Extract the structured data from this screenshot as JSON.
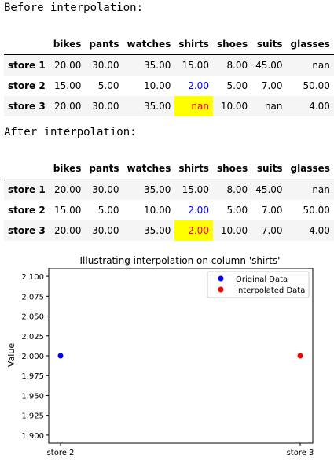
{
  "before": {
    "heading": "Before interpolation:",
    "columns": [
      "",
      "bikes",
      "pants",
      "watches",
      "shirts",
      "shoes",
      "suits",
      "glasses"
    ],
    "rows": [
      {
        "index": "store 1",
        "cells": [
          "20.00",
          "30.00",
          "35.00",
          "15.00",
          "8.00",
          "45.00",
          "nan"
        ]
      },
      {
        "index": "store 2",
        "cells": [
          "15.00",
          "5.00",
          "10.00",
          "2.00",
          "5.00",
          "7.00",
          "50.00"
        ]
      },
      {
        "index": "store 3",
        "cells": [
          "20.00",
          "30.00",
          "35.00",
          "nan",
          "10.00",
          "nan",
          "4.00"
        ]
      }
    ]
  },
  "after": {
    "heading": "After interpolation:",
    "columns": [
      "",
      "bikes",
      "pants",
      "watches",
      "shirts",
      "shoes",
      "suits",
      "glasses"
    ],
    "rows": [
      {
        "index": "store 1",
        "cells": [
          "20.00",
          "30.00",
          "35.00",
          "15.00",
          "8.00",
          "45.00",
          "nan"
        ]
      },
      {
        "index": "store 2",
        "cells": [
          "15.00",
          "5.00",
          "10.00",
          "2.00",
          "5.00",
          "7.00",
          "50.00"
        ]
      },
      {
        "index": "store 3",
        "cells": [
          "20.00",
          "30.00",
          "35.00",
          "2.00",
          "10.00",
          "7.00",
          "4.00"
        ]
      }
    ]
  },
  "highlight": {
    "blue_text": "#0000ff",
    "red_text": "#ff0000",
    "yellow_bg": "#ffff00"
  },
  "chart_data": {
    "type": "scatter",
    "title": "Illustrating interpolation on column 'shirts'",
    "xlabel": "",
    "ylabel": "Value",
    "categories": [
      "store 2",
      "store 3"
    ],
    "ylim": [
      1.89,
      2.11
    ],
    "yticks": [
      "1.900",
      "1.925",
      "1.950",
      "1.975",
      "2.000",
      "2.025",
      "2.050",
      "2.075",
      "2.100"
    ],
    "grid": false,
    "legend_position": "top-right",
    "series": [
      {
        "name": "Original Data",
        "color": "#0000ff",
        "points": [
          {
            "x": "store 2",
            "y": 2.0
          }
        ]
      },
      {
        "name": "Interpolated Data",
        "color": "#ff0000",
        "points": [
          {
            "x": "store 3",
            "y": 2.0
          }
        ]
      }
    ]
  }
}
